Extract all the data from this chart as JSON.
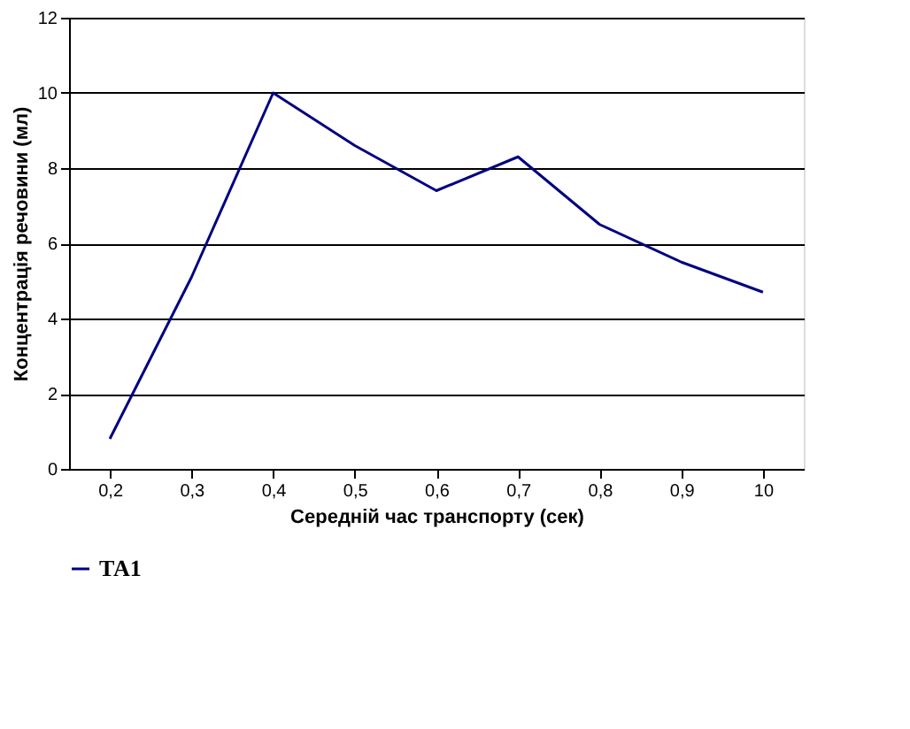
{
  "chart_data": {
    "type": "line",
    "xlabel": "Середній час транспорту (сек)",
    "ylabel": "Концентрація речовини (мл)",
    "categories": [
      "0,2",
      "0,3",
      "0,4",
      "0,5",
      "0,6",
      "0,7",
      "0,8",
      "0,9",
      "10"
    ],
    "series": [
      {
        "name": "ТА1",
        "color": "#000080",
        "values": [
          0.8,
          5.1,
          10,
          8.6,
          7.4,
          8.3,
          6.5,
          5.5,
          4.7
        ]
      }
    ],
    "ylim": [
      0,
      12
    ],
    "yticks": [
      0,
      2,
      4,
      6,
      8,
      10,
      12
    ],
    "grid": "y",
    "legend": "bottom",
    "marker": "none",
    "line_style": "solid"
  }
}
